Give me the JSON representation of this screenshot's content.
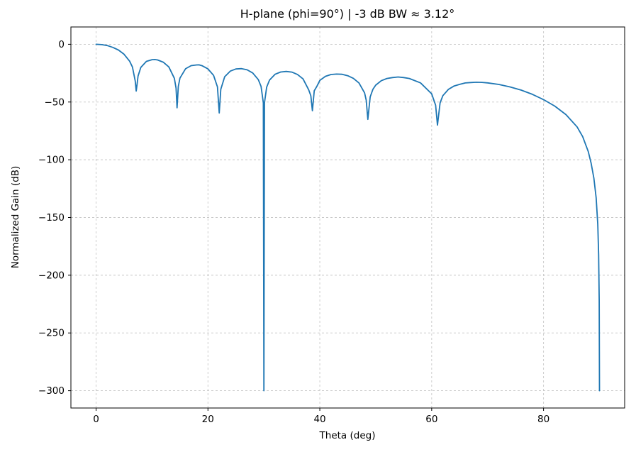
{
  "figure": {
    "title": "H-plane (phi=90°) |  -3 dB BW ≈ 3.12°",
    "xlabel": "Theta (deg)",
    "ylabel": "Normalized Gain (dB)"
  },
  "chart_data": {
    "type": "line",
    "title": "H-plane (phi=90°) |  -3 dB BW ≈ 3.12°",
    "xlabel": "Theta (deg)",
    "ylabel": "Normalized Gain (dB)",
    "xlim": [
      -4.5,
      94.5
    ],
    "ylim": [
      -315,
      15
    ],
    "x_ticks": [
      0,
      20,
      40,
      60,
      80
    ],
    "y_ticks": [
      0,
      -50,
      -100,
      -150,
      -200,
      -250,
      -300
    ],
    "grid": true,
    "grid_style": "dashed",
    "grid_color": "#c8c8c8",
    "line_color": "#1f77b4",
    "spine_color": "#000000",
    "beamwidth_deg": 3.12,
    "series": [
      {
        "name": "H-plane normalized gain",
        "points": [
          [
            0,
            0
          ],
          [
            0.5,
            -0.1
          ],
          [
            1,
            -0.3
          ],
          [
            2,
            -1.1
          ],
          [
            3,
            -2.7
          ],
          [
            4,
            -5
          ],
          [
            5,
            -8.6
          ],
          [
            6,
            -14.6
          ],
          [
            6.5,
            -19.7
          ],
          [
            7,
            -31.7
          ],
          [
            7.18,
            -40.5
          ],
          [
            7.3,
            -35.9
          ],
          [
            7.5,
            -27.5
          ],
          [
            8,
            -20
          ],
          [
            9,
            -14.8
          ],
          [
            10,
            -13.3
          ],
          [
            10.5,
            -13.2
          ],
          [
            11,
            -13.6
          ],
          [
            12,
            -15.5
          ],
          [
            13,
            -19.6
          ],
          [
            14,
            -29.4
          ],
          [
            14.3,
            -38
          ],
          [
            14.48,
            -55
          ],
          [
            14.7,
            -36.5
          ],
          [
            15,
            -29.3
          ],
          [
            16,
            -21.2
          ],
          [
            17,
            -18.5
          ],
          [
            18,
            -17.9
          ],
          [
            18.4,
            -17.8
          ],
          [
            19,
            -18.7
          ],
          [
            20,
            -21.3
          ],
          [
            21,
            -26.9
          ],
          [
            21.7,
            -36.9
          ],
          [
            22.02,
            -59.5
          ],
          [
            22.3,
            -39
          ],
          [
            23,
            -28.1
          ],
          [
            24,
            -23.2
          ],
          [
            25,
            -21.4
          ],
          [
            26,
            -21.1
          ],
          [
            27,
            -22.1
          ],
          [
            28,
            -24.8
          ],
          [
            29,
            -30.6
          ],
          [
            29.5,
            -36.5
          ],
          [
            29.9,
            -50.7
          ],
          [
            30,
            -300
          ],
          [
            30.1,
            -50.7
          ],
          [
            30.5,
            -37.1
          ],
          [
            31,
            -31
          ],
          [
            32,
            -26
          ],
          [
            33,
            -24
          ],
          [
            34,
            -23.5
          ],
          [
            35,
            -24.1
          ],
          [
            36,
            -26.1
          ],
          [
            37,
            -30
          ],
          [
            38,
            -39.3
          ],
          [
            38.4,
            -44.6
          ],
          [
            38.68,
            -57.5
          ],
          [
            39,
            -40.3
          ],
          [
            39.5,
            -36.2
          ],
          [
            40,
            -31.3
          ],
          [
            41,
            -27.8
          ],
          [
            42,
            -26.2
          ],
          [
            43,
            -25.8
          ],
          [
            44,
            -26
          ],
          [
            45,
            -27.2
          ],
          [
            46,
            -29.5
          ],
          [
            47,
            -33.5
          ],
          [
            48,
            -42.1
          ],
          [
            48.3,
            -48.4
          ],
          [
            48.59,
            -65
          ],
          [
            49,
            -45.6
          ],
          [
            49.5,
            -38.9
          ],
          [
            50,
            -35.4
          ],
          [
            51,
            -31.5
          ],
          [
            52,
            -29.6
          ],
          [
            53,
            -28.8
          ],
          [
            54,
            -28.3
          ],
          [
            55,
            -28.8
          ],
          [
            56,
            -29.6
          ],
          [
            58,
            -33.4
          ],
          [
            60,
            -42.9
          ],
          [
            60.7,
            -52.8
          ],
          [
            61.04,
            -70
          ],
          [
            61.5,
            -50.7
          ],
          [
            62,
            -44.5
          ],
          [
            63,
            -39
          ],
          [
            64,
            -36.1
          ],
          [
            65,
            -34.7
          ],
          [
            66,
            -33.5
          ],
          [
            67,
            -33.1
          ],
          [
            68,
            -32.9
          ],
          [
            69,
            -33
          ],
          [
            70,
            -33.4
          ],
          [
            72,
            -34.8
          ],
          [
            74,
            -36.9
          ],
          [
            76,
            -39.7
          ],
          [
            78,
            -43.3
          ],
          [
            80,
            -47.9
          ],
          [
            82,
            -53.5
          ],
          [
            84,
            -60.9
          ],
          [
            86,
            -71.5
          ],
          [
            87,
            -80
          ],
          [
            88,
            -93
          ],
          [
            88.5,
            -103
          ],
          [
            89,
            -116
          ],
          [
            89.4,
            -133
          ],
          [
            89.7,
            -156
          ],
          [
            89.85,
            -182
          ],
          [
            89.95,
            -222
          ],
          [
            90,
            -300
          ]
        ]
      }
    ]
  }
}
